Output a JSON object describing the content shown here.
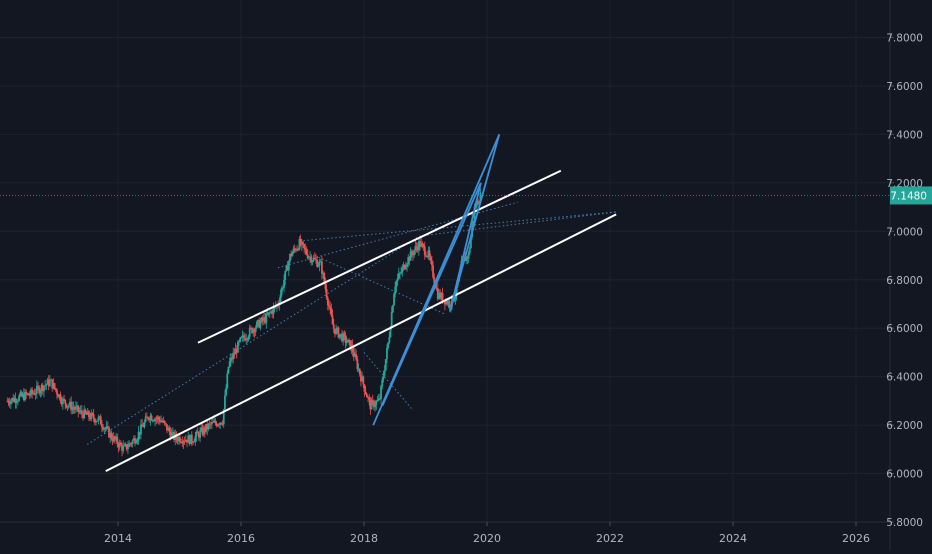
{
  "colors": {
    "background": "#131722",
    "grid": "#1e2230",
    "axis_text": "#b2b5be",
    "up_candle": "#26a69a",
    "down_candle": "#ef5350",
    "channel_lines": "#ffffff",
    "pattern_lines": "#3d8fd6",
    "dotted_lines": "#4a8fd0",
    "price_tag": "#26a69a",
    "price_tag_text": "#ffffff"
  },
  "price_axis": {
    "labels": [
      "7.8000",
      "7.6000",
      "7.4000",
      "7.2000",
      "7.0000",
      "6.8000",
      "6.6000",
      "6.4000",
      "6.2000",
      "6.0000",
      "5.8000"
    ],
    "current_price": "7.1480"
  },
  "time_axis": {
    "labels": [
      "2014",
      "2016",
      "2018",
      "2020",
      "2022",
      "2024",
      "2026"
    ]
  },
  "chart_data": {
    "type": "candlestick",
    "title": "",
    "xlabel": "",
    "ylabel": "",
    "ylim": [
      5.79,
      7.99
    ],
    "xlim": [
      2012.2,
      2027.0
    ],
    "grid": true,
    "last_price": 7.148,
    "price_path": [
      [
        2012.2,
        6.3
      ],
      [
        2012.6,
        6.33
      ],
      [
        2012.9,
        6.38
      ],
      [
        2013.1,
        6.3
      ],
      [
        2013.4,
        6.25
      ],
      [
        2013.7,
        6.22
      ],
      [
        2013.9,
        6.15
      ],
      [
        2014.1,
        6.1
      ],
      [
        2014.3,
        6.15
      ],
      [
        2014.5,
        6.24
      ],
      [
        2014.7,
        6.22
      ],
      [
        2014.9,
        6.15
      ],
      [
        2015.2,
        6.14
      ],
      [
        2015.5,
        6.2
      ],
      [
        2015.7,
        6.22
      ],
      [
        2015.8,
        6.45
      ],
      [
        2016.0,
        6.55
      ],
      [
        2016.2,
        6.6
      ],
      [
        2016.4,
        6.64
      ],
      [
        2016.6,
        6.7
      ],
      [
        2016.8,
        6.9
      ],
      [
        2016.95,
        6.95
      ],
      [
        2017.1,
        6.9
      ],
      [
        2017.3,
        6.86
      ],
      [
        2017.5,
        6.6
      ],
      [
        2017.7,
        6.55
      ],
      [
        2017.8,
        6.52
      ],
      [
        2017.95,
        6.4
      ],
      [
        2018.1,
        6.28
      ],
      [
        2018.25,
        6.3
      ],
      [
        2018.4,
        6.55
      ],
      [
        2018.5,
        6.78
      ],
      [
        2018.7,
        6.88
      ],
      [
        2018.9,
        6.95
      ],
      [
        2019.05,
        6.9
      ],
      [
        2019.2,
        6.74
      ],
      [
        2019.4,
        6.7
      ],
      [
        2019.5,
        6.75
      ],
      [
        2019.6,
        6.88
      ],
      [
        2019.7,
        6.9
      ],
      [
        2019.8,
        7.1
      ],
      [
        2019.9,
        7.148
      ]
    ],
    "channel": [
      {
        "name": "upper",
        "points": [
          [
            2015.3,
            6.54
          ],
          [
            2021.2,
            7.25
          ]
        ]
      },
      {
        "name": "lower",
        "points": [
          [
            2013.8,
            6.01
          ],
          [
            2022.1,
            7.07
          ]
        ]
      }
    ],
    "pattern": [
      [
        [
          2018.15,
          6.2
        ],
        [
          2020.2,
          7.4
        ]
      ],
      [
        [
          2018.3,
          6.28
        ],
        [
          2019.9,
          7.2
        ]
      ],
      [
        [
          2020.2,
          7.4
        ],
        [
          2019.4,
          6.67
        ]
      ],
      [
        [
          2019.9,
          7.2
        ],
        [
          2019.4,
          6.67
        ]
      ]
    ],
    "dotted": [
      [
        [
          2013.5,
          6.12
        ],
        [
          2018.9,
          6.98
        ]
      ],
      [
        [
          2016.95,
          6.96
        ],
        [
          2022.1,
          7.08
        ]
      ],
      [
        [
          2018.9,
          6.98
        ],
        [
          2022.1,
          7.08
        ]
      ],
      [
        [
          2016.6,
          6.85
        ],
        [
          2020.5,
          7.12
        ]
      ],
      [
        [
          2017.2,
          6.9
        ],
        [
          2019.3,
          6.66
        ]
      ],
      [
        [
          2018.0,
          6.5
        ],
        [
          2018.8,
          6.26
        ]
      ]
    ]
  }
}
